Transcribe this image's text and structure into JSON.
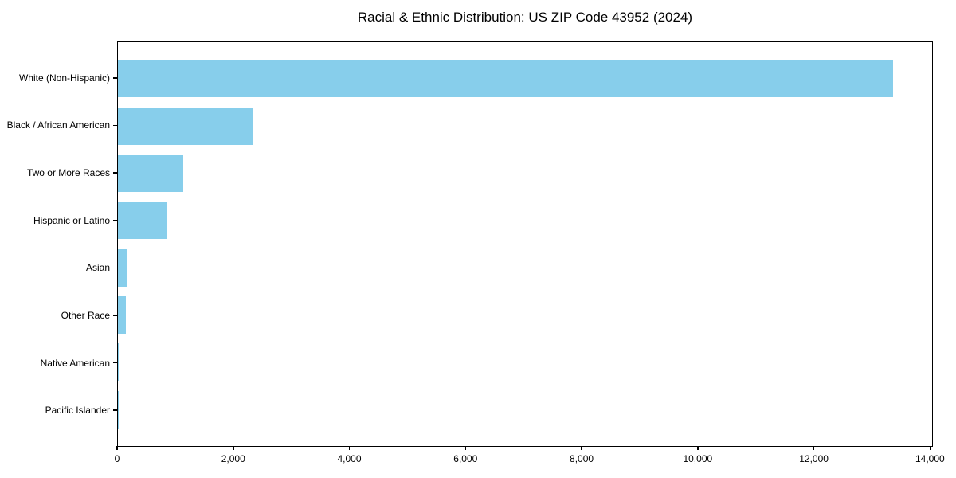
{
  "chart_data": {
    "type": "bar",
    "orientation": "horizontal",
    "title": "Racial & Ethnic Distribution: US ZIP Code 43952 (2024)",
    "categories": [
      "White (Non-Hispanic)",
      "Black / African American",
      "Two or More Races",
      "Hispanic or Latino",
      "Asian",
      "Other Race",
      "Native American",
      "Pacific Islander"
    ],
    "values": [
      13380,
      2320,
      1130,
      840,
      155,
      140,
      20,
      5
    ],
    "xlabel": "",
    "ylabel": "",
    "xlim": [
      0,
      14050
    ],
    "x_ticks": [
      0,
      2000,
      4000,
      6000,
      8000,
      10000,
      12000,
      14000
    ],
    "x_tick_labels": [
      "0",
      "2,000",
      "4,000",
      "6,000",
      "8,000",
      "10,000",
      "12,000",
      "14,000"
    ],
    "bar_color": "#87CEEB",
    "axis_color": "#000000",
    "background_color": "#ffffff",
    "grid": false,
    "legend": null
  }
}
